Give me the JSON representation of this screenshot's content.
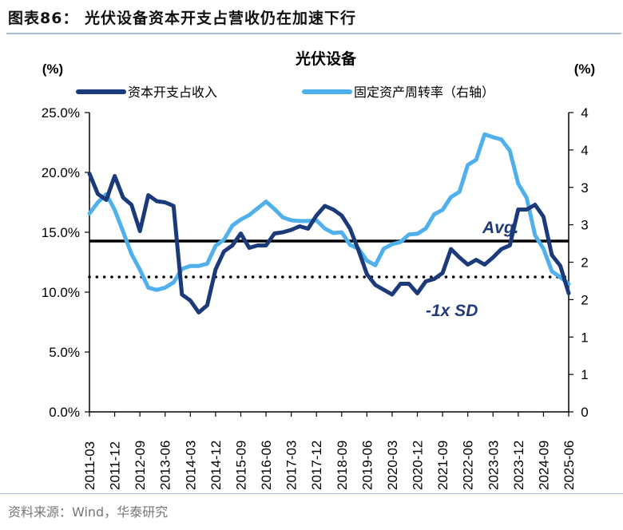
{
  "figure_title": "图表86：  光伏设备资本开支占营收仍在加速下行",
  "source": "资料来源：Wind，华泰研究",
  "chart_data": {
    "type": "line",
    "title": "光伏设备",
    "left_unit": "(%)",
    "right_unit": "(%)",
    "x": [
      "2011-03",
      "2011-06",
      "2011-09",
      "2011-12",
      "2012-03",
      "2012-06",
      "2012-09",
      "2012-12",
      "2013-03",
      "2013-06",
      "2013-09",
      "2013-12",
      "2014-03",
      "2014-06",
      "2014-09",
      "2014-12",
      "2015-03",
      "2015-06",
      "2015-09",
      "2015-12",
      "2016-03",
      "2016-06",
      "2016-09",
      "2016-12",
      "2017-03",
      "2017-06",
      "2017-09",
      "2017-12",
      "2018-03",
      "2018-06",
      "2018-09",
      "2018-12",
      "2019-03",
      "2019-06",
      "2019-09",
      "2019-12",
      "2020-03",
      "2020-06",
      "2020-09",
      "2020-12",
      "2021-03",
      "2021-06",
      "2021-09",
      "2021-12",
      "2022-03",
      "2022-06",
      "2022-09",
      "2022-12",
      "2023-03",
      "2023-06",
      "2023-09",
      "2023-12",
      "2024-03",
      "2024-06",
      "2024-09",
      "2024-12",
      "2025-03",
      "2025-06"
    ],
    "x_tick_labels": [
      "2011-03",
      "2011-12",
      "2012-09",
      "2013-06",
      "2014-03",
      "2014-12",
      "2015-09",
      "2016-06",
      "2017-03",
      "2017-12",
      "2018-09",
      "2019-06",
      "2020-03",
      "2020-12",
      "2021-09",
      "2022-06",
      "2023-03",
      "2023-12",
      "2024-09",
      "2025-06"
    ],
    "left_axis": {
      "ylim": [
        0,
        25
      ],
      "tick_labels": [
        "0.0%",
        "5.0%",
        "10.0%",
        "15.0%",
        "20.0%",
        "25.0%"
      ]
    },
    "right_axis": {
      "ylim": [
        0,
        4
      ],
      "tick_labels": [
        "0",
        "1",
        "1",
        "2",
        "2",
        "3",
        "3",
        "4",
        "4"
      ]
    },
    "series": [
      {
        "name": "资本开支占收入",
        "axis": "left",
        "color": "#1b3a7a",
        "values": [
          19.9,
          18.2,
          17.7,
          19.7,
          17.9,
          17.3,
          15.1,
          18.1,
          17.6,
          17.5,
          17.2,
          9.8,
          9.3,
          8.3,
          8.9,
          11.9,
          13.4,
          13.9,
          14.9,
          13.7,
          13.9,
          13.9,
          14.9,
          15.0,
          15.2,
          15.5,
          15.3,
          16.4,
          17.2,
          16.9,
          16.4,
          15.3,
          13.5,
          11.5,
          10.6,
          10.2,
          9.8,
          10.7,
          10.7,
          9.9,
          10.9,
          11.1,
          11.6,
          13.6,
          12.9,
          12.3,
          12.7,
          12.3,
          12.9,
          13.6,
          13.9,
          16.9,
          16.9,
          17.3,
          16.3,
          13.1,
          12.2,
          9.9
        ]
      },
      {
        "name": "固定资产周转率（右轴）",
        "axis": "right",
        "color": "#4fb0ec",
        "values": [
          2.65,
          2.8,
          2.91,
          2.7,
          2.41,
          2.11,
          1.9,
          1.66,
          1.63,
          1.66,
          1.73,
          1.91,
          1.95,
          1.95,
          1.98,
          2.22,
          2.3,
          2.49,
          2.57,
          2.63,
          2.72,
          2.81,
          2.71,
          2.6,
          2.56,
          2.55,
          2.55,
          2.56,
          2.45,
          2.39,
          2.4,
          2.23,
          2.18,
          2.02,
          1.96,
          2.18,
          2.24,
          2.27,
          2.37,
          2.38,
          2.45,
          2.64,
          2.7,
          2.87,
          2.94,
          3.3,
          3.37,
          3.71,
          3.67,
          3.64,
          3.49,
          3.05,
          2.86,
          2.36,
          2.18,
          1.88,
          1.8,
          1.71
        ]
      }
    ],
    "reference_lines": [
      {
        "label": "Avg.",
        "value": 14.27,
        "style": "solid",
        "color": "#000000"
      },
      {
        "label": "-1x SD",
        "value": 11.27,
        "style": "dotted",
        "color": "#000000"
      }
    ],
    "legend_position": "top",
    "grid": false
  }
}
